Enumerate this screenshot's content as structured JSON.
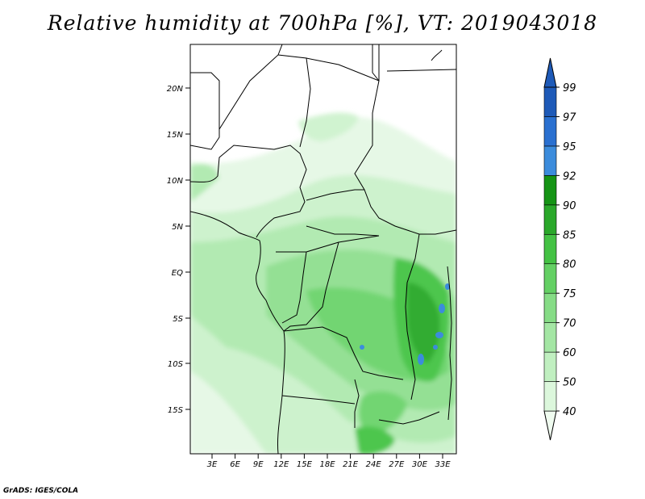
{
  "title": "Relative humidity at 700hPa [%], VT: 2019043018",
  "credit": "GrADS: IGES/COLA",
  "map": {
    "lat_labels": [
      "20N",
      "15N",
      "10N",
      "5N",
      "EQ",
      "5S",
      "10S",
      "15S"
    ],
    "lon_labels": [
      "3E",
      "6E",
      "9E",
      "12E",
      "15E",
      "18E",
      "21E",
      "24E",
      "27E",
      "30E",
      "33E"
    ]
  },
  "colorbar": {
    "levels": [
      "40",
      "50",
      "60",
      "70",
      "75",
      "80",
      "85",
      "90",
      "92",
      "95",
      "97",
      "99"
    ],
    "colors": [
      "#f0fcf0",
      "#dcf7dc",
      "#c0efc0",
      "#a4e6a4",
      "#86dc86",
      "#64d064",
      "#44c244",
      "#2aa82a",
      "#159415",
      "#3c8cdc",
      "#2a70d0",
      "#1e5ab8"
    ]
  }
}
